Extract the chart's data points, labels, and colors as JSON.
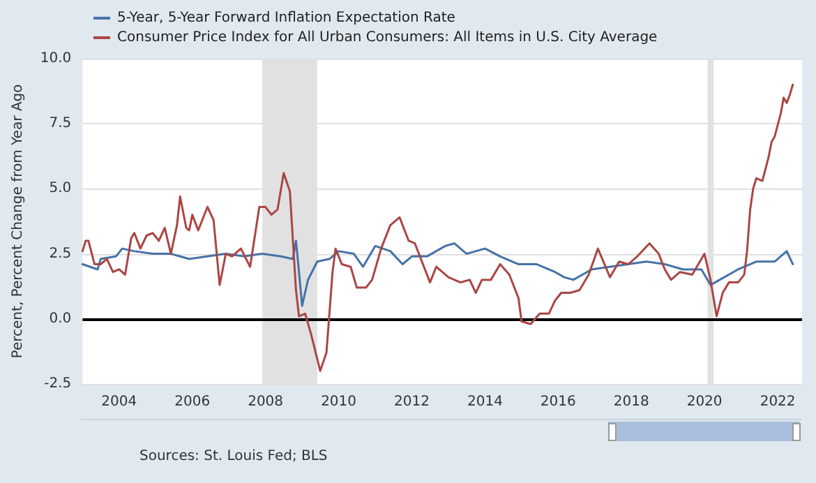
{
  "chart_data": {
    "type": "line",
    "ylabel": "Percent, Percent Change from Year Ago",
    "xlim": [
      "2003-01-01",
      "2022-09-01"
    ],
    "xticks": [
      "2004",
      "2006",
      "2008",
      "2010",
      "2012",
      "2014",
      "2016",
      "2018",
      "2020",
      "2022"
    ],
    "ylim": [
      -2.5,
      10
    ],
    "yticks": [
      -2.5,
      {
        "value": 0,
        "label": "0.0"
      },
      2.5,
      {
        "value": 5,
        "label": "5.0"
      },
      7.5,
      {
        "value": 10,
        "label": "10.0"
      }
    ],
    "grid": "y",
    "legend": "top left",
    "marker": "none",
    "line_style": "solid",
    "annotations": [
      "Sources: St. Louis Fed; BLS"
    ],
    "ref_lines": [
      {
        "axis": "y",
        "value": 0,
        "label": null,
        "color": "#000000"
      }
    ],
    "bands": [
      {
        "axis": "x",
        "from": "2007-12",
        "to": "2009-06",
        "label": null,
        "color": "#e1e1e1"
      },
      {
        "axis": "x",
        "from": "2020-02",
        "to": "2020-04",
        "label": null,
        "color": "#e1e1e1"
      }
    ],
    "series": [
      {
        "name": "5-Year, 5-Year Forward Inflation Expectation Rate",
        "color": "#4572a7",
        "x": [
          "2003-01",
          "2003-06",
          "2003-07",
          "2003-12",
          "2004-02",
          "2004-06",
          "2004-12",
          "2005-06",
          "2005-12",
          "2006-06",
          "2006-12",
          "2007-06",
          "2007-12",
          "2008-06",
          "2008-10",
          "2008-11",
          "2008-12",
          "2009-01",
          "2009-03",
          "2009-06",
          "2009-10",
          "2010-01",
          "2010-06",
          "2010-09",
          "2011-01",
          "2011-06",
          "2011-10",
          "2012-01",
          "2012-06",
          "2012-12",
          "2013-03",
          "2013-07",
          "2014-01",
          "2014-06",
          "2014-12",
          "2015-06",
          "2015-12",
          "2016-03",
          "2016-06",
          "2016-12",
          "2017-06",
          "2017-12",
          "2018-06",
          "2018-12",
          "2019-06",
          "2019-12",
          "2020-03",
          "2020-06",
          "2020-12",
          "2021-06",
          "2021-12",
          "2022-04",
          "2022-06"
        ],
        "values": [
          2.1,
          1.9,
          2.3,
          2.4,
          2.7,
          2.6,
          2.5,
          2.5,
          2.3,
          2.4,
          2.5,
          2.4,
          2.5,
          2.4,
          2.3,
          3.0,
          1.8,
          0.5,
          1.5,
          2.2,
          2.3,
          2.6,
          2.5,
          2.0,
          2.8,
          2.6,
          2.1,
          2.4,
          2.4,
          2.8,
          2.9,
          2.5,
          2.7,
          2.4,
          2.1,
          2.1,
          1.8,
          1.6,
          1.5,
          1.9,
          2.0,
          2.1,
          2.2,
          2.1,
          1.9,
          1.9,
          1.3,
          1.5,
          1.9,
          2.2,
          2.2,
          2.6,
          2.1
        ]
      },
      {
        "name": "Consumer Price Index for All Urban Consumers: All Items in U.S. City Average",
        "color": "#aa4643",
        "x": [
          "2003-01",
          "2003-02",
          "2003-03",
          "2003-05",
          "2003-07",
          "2003-09",
          "2003-11",
          "2004-01",
          "2004-03",
          "2004-05",
          "2004-06",
          "2004-08",
          "2004-10",
          "2004-12",
          "2005-02",
          "2005-04",
          "2005-06",
          "2005-08",
          "2005-09",
          "2005-11",
          "2005-12",
          "2006-01",
          "2006-03",
          "2006-06",
          "2006-08",
          "2006-10",
          "2006-12",
          "2007-02",
          "2007-05",
          "2007-08",
          "2007-11",
          "2008-01",
          "2008-03",
          "2008-05",
          "2008-07",
          "2008-09",
          "2008-11",
          "2008-12",
          "2009-02",
          "2009-04",
          "2009-07",
          "2009-09",
          "2009-11",
          "2009-12",
          "2010-02",
          "2010-05",
          "2010-07",
          "2010-10",
          "2010-12",
          "2011-03",
          "2011-06",
          "2011-09",
          "2011-12",
          "2012-02",
          "2012-04",
          "2012-07",
          "2012-09",
          "2012-11",
          "2013-01",
          "2013-03",
          "2013-05",
          "2013-08",
          "2013-10",
          "2013-12",
          "2014-03",
          "2014-06",
          "2014-09",
          "2014-12",
          "2015-01",
          "2015-04",
          "2015-07",
          "2015-10",
          "2015-12",
          "2016-02",
          "2016-05",
          "2016-08",
          "2016-11",
          "2017-02",
          "2017-06",
          "2017-09",
          "2017-12",
          "2018-03",
          "2018-07",
          "2018-10",
          "2018-12",
          "2019-02",
          "2019-05",
          "2019-09",
          "2019-12",
          "2020-01",
          "2020-03",
          "2020-05",
          "2020-07",
          "2020-09",
          "2020-12",
          "2021-02",
          "2021-03",
          "2021-04",
          "2021-05",
          "2021-06",
          "2021-08",
          "2021-10",
          "2021-11",
          "2021-12",
          "2022-02",
          "2022-03",
          "2022-04",
          "2022-05",
          "2022-06"
        ],
        "values": [
          2.6,
          3.0,
          3.0,
          2.1,
          2.1,
          2.3,
          1.8,
          1.9,
          1.7,
          3.1,
          3.3,
          2.7,
          3.2,
          3.3,
          3.0,
          3.5,
          2.5,
          3.6,
          4.7,
          3.5,
          3.4,
          4.0,
          3.4,
          4.3,
          3.8,
          1.3,
          2.5,
          2.4,
          2.7,
          2.0,
          4.3,
          4.3,
          4.0,
          4.2,
          5.6,
          4.9,
          1.1,
          0.1,
          0.2,
          -0.6,
          -2.0,
          -1.3,
          1.8,
          2.7,
          2.1,
          2.0,
          1.2,
          1.2,
          1.5,
          2.7,
          3.6,
          3.9,
          3.0,
          2.9,
          2.3,
          1.4,
          2.0,
          1.8,
          1.6,
          1.5,
          1.4,
          1.5,
          1.0,
          1.5,
          1.5,
          2.1,
          1.7,
          0.8,
          -0.1,
          -0.2,
          0.2,
          0.2,
          0.7,
          1.0,
          1.0,
          1.1,
          1.7,
          2.7,
          1.6,
          2.2,
          2.1,
          2.4,
          2.9,
          2.5,
          1.9,
          1.5,
          1.8,
          1.7,
          2.3,
          2.5,
          1.5,
          0.1,
          1.0,
          1.4,
          1.4,
          1.7,
          2.6,
          4.2,
          5.0,
          5.4,
          5.3,
          6.2,
          6.8,
          7.0,
          7.9,
          8.5,
          8.3,
          8.6,
          9.0
        ]
      }
    ]
  }
}
